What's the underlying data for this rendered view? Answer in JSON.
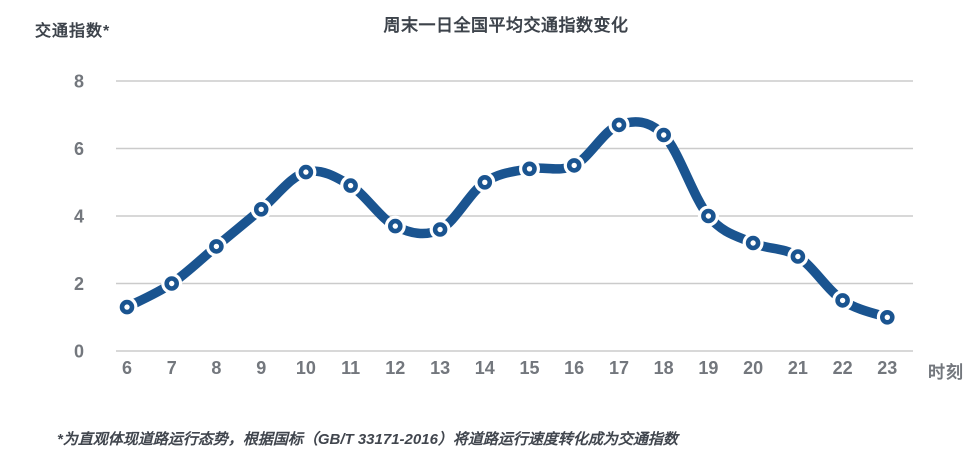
{
  "page": {
    "background": "#ffffff"
  },
  "chart_data": {
    "type": "line",
    "title": "周末一日全国平均交通指数变化",
    "ylabel": "交通指数*",
    "xlabel": "时刻",
    "x": [
      6,
      7,
      8,
      9,
      10,
      11,
      12,
      13,
      14,
      15,
      16,
      17,
      18,
      19,
      20,
      21,
      22,
      23
    ],
    "series": [
      {
        "name": "全国平均交通指数",
        "values": [
          1.3,
          2.0,
          3.1,
          4.2,
          5.3,
          4.9,
          3.7,
          3.6,
          5.0,
          5.4,
          5.5,
          6.7,
          6.4,
          4.0,
          3.2,
          2.8,
          1.5,
          1.0
        ]
      }
    ],
    "ylim": [
      0,
      8
    ],
    "yticks": [
      0,
      2,
      4,
      6,
      8
    ],
    "grid": "horizontal",
    "legend": "none",
    "smooth": true,
    "marker": "ring",
    "colors": {
      "line": "#1a5490",
      "marker_ring": "#1a5490",
      "marker_fill": "#ffffff",
      "gridline": "#cbcbcb",
      "tick_label": "#73777d",
      "title": "#3d434b",
      "footnote": "#41464e"
    }
  },
  "footnote": "*为直观体现道路运行态势，根据国标（GB/T 33171-2016）将道路运行速度转化成为交通指数"
}
